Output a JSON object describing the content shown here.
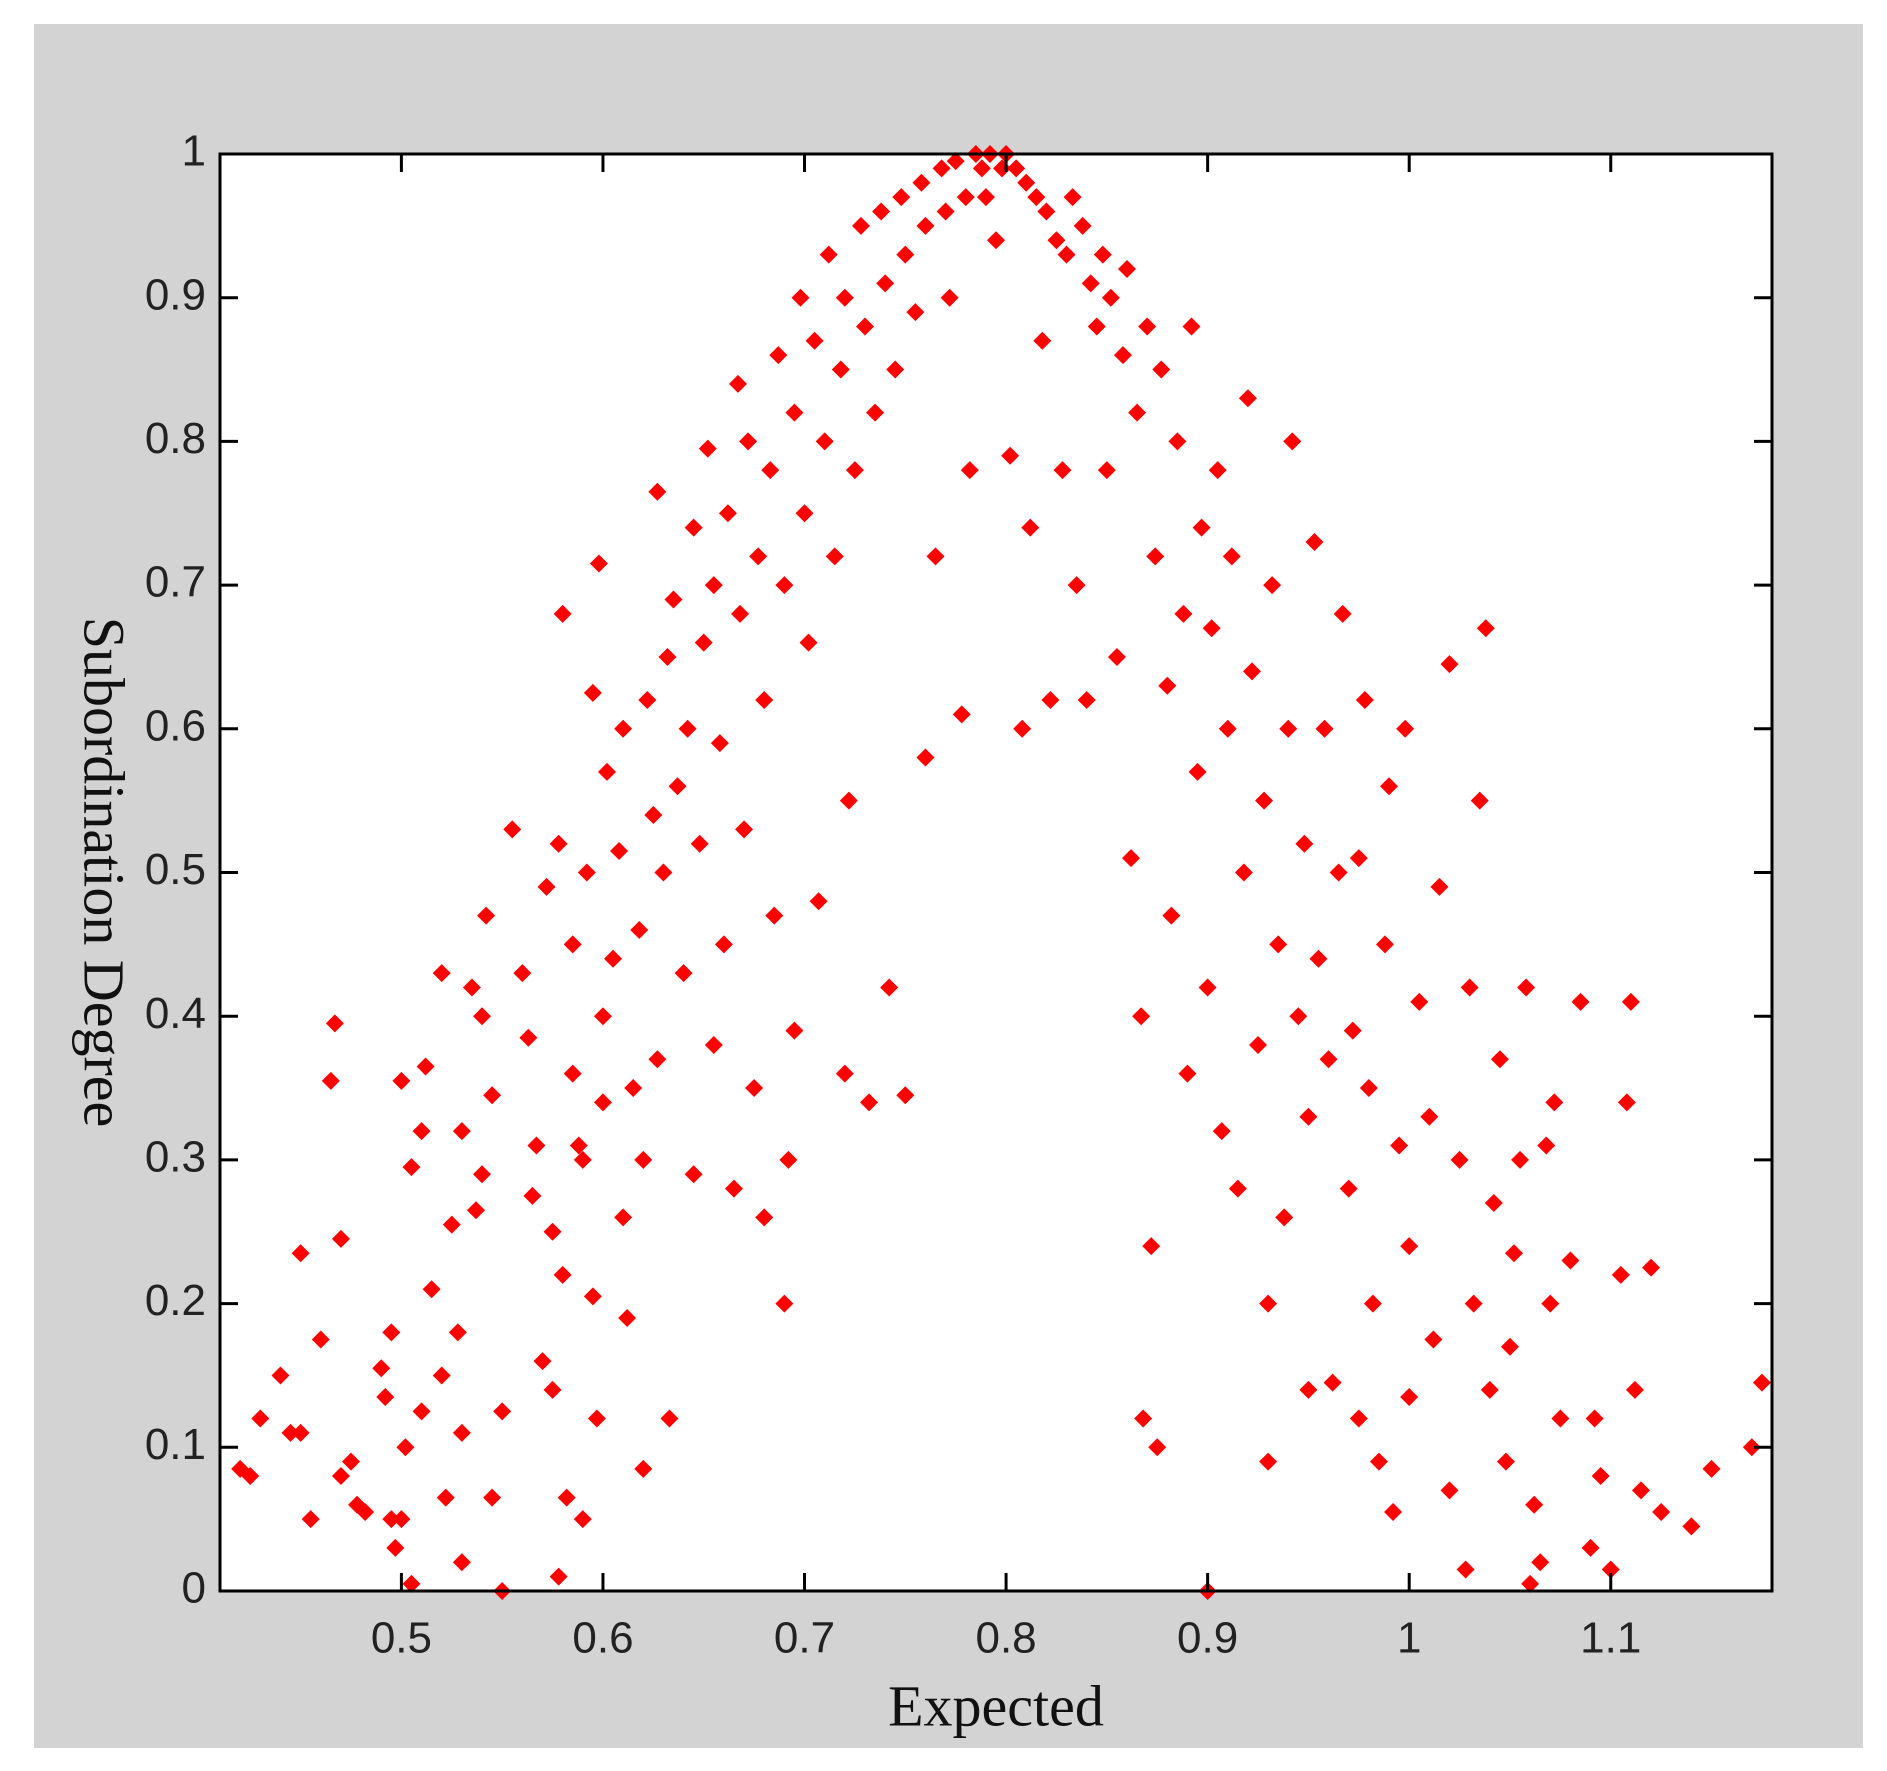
{
  "chart_data": {
    "type": "scatter",
    "xlabel": "Expected",
    "ylabel": "Subordination Degree",
    "color": "#ff0000",
    "marker": "diamond",
    "xlim": [
      0.41,
      1.18
    ],
    "ylim": [
      0,
      1
    ],
    "xticks": [
      0.5,
      0.6,
      0.7,
      0.8,
      0.9,
      1,
      1.1
    ],
    "yticks": [
      0,
      0.1,
      0.2,
      0.3,
      0.4,
      0.5,
      0.6,
      0.7,
      0.8,
      0.9,
      1
    ],
    "grid": false,
    "x": [
      0.42,
      0.425,
      0.43,
      0.44,
      0.445,
      0.45,
      0.45,
      0.455,
      0.46,
      0.465,
      0.467,
      0.47,
      0.47,
      0.475,
      0.478,
      0.482,
      0.49,
      0.492,
      0.495,
      0.495,
      0.497,
      0.5,
      0.5,
      0.502,
      0.505,
      0.505,
      0.51,
      0.51,
      0.512,
      0.515,
      0.52,
      0.52,
      0.522,
      0.525,
      0.528,
      0.53,
      0.53,
      0.53,
      0.535,
      0.537,
      0.54,
      0.54,
      0.542,
      0.545,
      0.545,
      0.55,
      0.55,
      0.555,
      0.56,
      0.563,
      0.565,
      0.567,
      0.57,
      0.572,
      0.575,
      0.575,
      0.578,
      0.578,
      0.58,
      0.58,
      0.582,
      0.585,
      0.585,
      0.588,
      0.59,
      0.59,
      0.592,
      0.595,
      0.595,
      0.597,
      0.598,
      0.6,
      0.6,
      0.602,
      0.605,
      0.608,
      0.61,
      0.61,
      0.612,
      0.615,
      0.618,
      0.62,
      0.62,
      0.622,
      0.625,
      0.627,
      0.627,
      0.63,
      0.632,
      0.633,
      0.635,
      0.637,
      0.64,
      0.642,
      0.645,
      0.645,
      0.648,
      0.65,
      0.652,
      0.655,
      0.655,
      0.658,
      0.66,
      0.662,
      0.665,
      0.667,
      0.668,
      0.67,
      0.672,
      0.675,
      0.677,
      0.68,
      0.68,
      0.683,
      0.685,
      0.687,
      0.69,
      0.69,
      0.692,
      0.695,
      0.695,
      0.698,
      0.7,
      0.702,
      0.705,
      0.707,
      0.71,
      0.712,
      0.715,
      0.718,
      0.72,
      0.72,
      0.722,
      0.725,
      0.728,
      0.73,
      0.732,
      0.735,
      0.738,
      0.74,
      0.742,
      0.745,
      0.748,
      0.75,
      0.75,
      0.755,
      0.758,
      0.76,
      0.76,
      0.765,
      0.768,
      0.77,
      0.772,
      0.775,
      0.778,
      0.78,
      0.782,
      0.785,
      0.788,
      0.79,
      0.792,
      0.795,
      0.798,
      0.8,
      0.802,
      0.805,
      0.808,
      0.81,
      0.812,
      0.815,
      0.818,
      0.82,
      0.822,
      0.825,
      0.828,
      0.83,
      0.833,
      0.835,
      0.838,
      0.84,
      0.842,
      0.845,
      0.848,
      0.85,
      0.852,
      0.855,
      0.858,
      0.86,
      0.862,
      0.865,
      0.867,
      0.868,
      0.87,
      0.872,
      0.874,
      0.875,
      0.877,
      0.88,
      0.882,
      0.885,
      0.888,
      0.89,
      0.892,
      0.895,
      0.897,
      0.9,
      0.9,
      0.902,
      0.905,
      0.907,
      0.91,
      0.912,
      0.915,
      0.918,
      0.92,
      0.922,
      0.925,
      0.928,
      0.93,
      0.93,
      0.932,
      0.935,
      0.938,
      0.94,
      0.942,
      0.945,
      0.948,
      0.95,
      0.95,
      0.953,
      0.955,
      0.958,
      0.96,
      0.962,
      0.965,
      0.967,
      0.97,
      0.972,
      0.975,
      0.975,
      0.978,
      0.98,
      0.982,
      0.985,
      0.988,
      0.99,
      0.992,
      0.995,
      0.998,
      1.0,
      1.0,
      1.005,
      1.01,
      1.012,
      1.015,
      1.02,
      1.02,
      1.025,
      1.028,
      1.03,
      1.032,
      1.035,
      1.038,
      1.04,
      1.042,
      1.045,
      1.048,
      1.05,
      1.052,
      1.055,
      1.058,
      1.06,
      1.062,
      1.065,
      1.068,
      1.07,
      1.072,
      1.075,
      1.08,
      1.085,
      1.09,
      1.092,
      1.095,
      1.1,
      1.105,
      1.108,
      1.11,
      1.112,
      1.115,
      1.12,
      1.125,
      1.14,
      1.15,
      1.17,
      1.175
    ],
    "values": [
      0.085,
      0.08,
      0.12,
      0.15,
      0.11,
      0.11,
      0.235,
      0.05,
      0.175,
      0.355,
      0.395,
      0.245,
      0.08,
      0.09,
      0.06,
      0.055,
      0.155,
      0.135,
      0.18,
      0.05,
      0.03,
      0.355,
      0.05,
      0.1,
      0.005,
      0.295,
      0.32,
      0.125,
      0.365,
      0.21,
      0.15,
      0.43,
      0.065,
      0.255,
      0.18,
      0.32,
      0.11,
      0.02,
      0.42,
      0.265,
      0.29,
      0.4,
      0.47,
      0.345,
      0.065,
      0.125,
      0.0,
      0.53,
      0.43,
      0.385,
      0.275,
      0.31,
      0.16,
      0.49,
      0.25,
      0.14,
      0.01,
      0.52,
      0.68,
      0.22,
      0.065,
      0.36,
      0.45,
      0.31,
      0.3,
      0.05,
      0.5,
      0.625,
      0.205,
      0.12,
      0.715,
      0.4,
      0.34,
      0.57,
      0.44,
      0.515,
      0.26,
      0.6,
      0.19,
      0.35,
      0.46,
      0.085,
      0.3,
      0.62,
      0.54,
      0.37,
      0.765,
      0.5,
      0.65,
      0.12,
      0.69,
      0.56,
      0.43,
      0.6,
      0.29,
      0.74,
      0.52,
      0.66,
      0.795,
      0.38,
      0.7,
      0.59,
      0.45,
      0.75,
      0.28,
      0.84,
      0.68,
      0.53,
      0.8,
      0.35,
      0.72,
      0.62,
      0.26,
      0.78,
      0.47,
      0.86,
      0.7,
      0.2,
      0.3,
      0.82,
      0.39,
      0.9,
      0.75,
      0.66,
      0.87,
      0.48,
      0.8,
      0.93,
      0.72,
      0.85,
      0.36,
      0.9,
      0.55,
      0.78,
      0.95,
      0.88,
      0.34,
      0.82,
      0.96,
      0.91,
      0.42,
      0.85,
      0.97,
      0.93,
      0.345,
      0.89,
      0.98,
      0.95,
      0.58,
      0.72,
      0.99,
      0.96,
      0.9,
      0.995,
      0.61,
      0.97,
      0.78,
      1.0,
      0.99,
      0.97,
      1.0,
      0.94,
      0.99,
      1.0,
      0.79,
      0.99,
      0.6,
      0.98,
      0.74,
      0.97,
      0.87,
      0.96,
      0.62,
      0.94,
      0.78,
      0.93,
      0.97,
      0.7,
      0.95,
      0.62,
      0.91,
      0.88,
      0.93,
      0.78,
      0.9,
      0.65,
      0.86,
      0.92,
      0.51,
      0.82,
      0.4,
      0.12,
      0.88,
      0.24,
      0.72,
      0.1,
      0.85,
      0.63,
      0.47,
      0.8,
      0.68,
      0.36,
      0.88,
      0.57,
      0.74,
      0.0,
      0.42,
      0.67,
      0.78,
      0.32,
      0.6,
      0.72,
      0.28,
      0.5,
      0.83,
      0.64,
      0.38,
      0.55,
      0.09,
      0.2,
      0.7,
      0.45,
      0.26,
      0.6,
      0.8,
      0.4,
      0.52,
      0.14,
      0.33,
      0.73,
      0.44,
      0.6,
      0.37,
      0.145,
      0.5,
      0.68,
      0.28,
      0.39,
      0.12,
      0.51,
      0.62,
      0.35,
      0.2,
      0.09,
      0.45,
      0.56,
      0.055,
      0.31,
      0.6,
      0.135,
      0.24,
      0.41,
      0.33,
      0.175,
      0.49,
      0.645,
      0.07,
      0.3,
      0.015,
      0.42,
      0.2,
      0.55,
      0.67,
      0.14,
      0.27,
      0.37,
      0.09,
      0.17,
      0.235,
      0.3,
      0.42,
      0.005,
      0.06,
      0.02,
      0.31,
      0.2,
      0.34,
      0.12,
      0.23,
      0.41,
      0.03,
      0.12,
      0.08,
      0.015,
      0.22,
      0.34,
      0.41,
      0.14,
      0.07,
      0.225,
      0.055,
      0.045,
      0.085,
      0.1,
      0.145
    ]
  }
}
